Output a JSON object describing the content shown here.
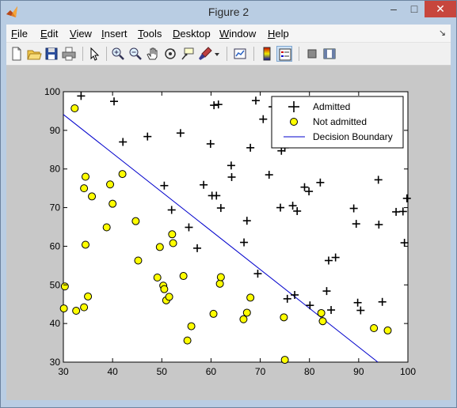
{
  "window": {
    "title": "Figure 2",
    "minimize_glyph": "–",
    "maximize_glyph": "□",
    "close_glyph": "✕"
  },
  "menubar": {
    "items": [
      {
        "u": "F",
        "rest": "ile"
      },
      {
        "u": "E",
        "rest": "dit"
      },
      {
        "u": "V",
        "rest": "iew"
      },
      {
        "u": "I",
        "rest": "nsert"
      },
      {
        "u": "T",
        "rest": "ools"
      },
      {
        "u": "D",
        "rest": "esktop"
      },
      {
        "u": "W",
        "rest": "indow"
      },
      {
        "u": "H",
        "rest": "elp"
      }
    ],
    "dock_glyph": "↘"
  },
  "toolbar": {
    "icons": [
      "new-figure-icon",
      "open-file-icon",
      "save-icon",
      "print-icon",
      "edit-plot-arrow-icon",
      "zoom-in-icon",
      "zoom-out-icon",
      "pan-hand-icon",
      "rotate-3d-icon",
      "data-cursor-icon",
      "brush-icon",
      "brush-dropdown-icon",
      "link-plot-icon",
      "insert-colorbar-icon",
      "insert-legend-icon",
      "hide-plot-tools-icon",
      "show-plot-tools-icon"
    ]
  },
  "chart_data": {
    "type": "scatter",
    "xlim": [
      30,
      100
    ],
    "ylim": [
      30,
      100
    ],
    "xticks": [
      30,
      40,
      50,
      60,
      70,
      80,
      90,
      100
    ],
    "yticks": [
      30,
      40,
      50,
      60,
      70,
      80,
      90,
      100
    ],
    "grid": false,
    "legend_position": "top-right",
    "series": [
      {
        "name": "Admitted",
        "marker": "plus",
        "color": "#000000",
        "points": [
          [
            33.6,
            98.9
          ],
          [
            40.3,
            97.5
          ],
          [
            42.1,
            87.0
          ],
          [
            47.1,
            88.4
          ],
          [
            53.8,
            89.3
          ],
          [
            50.5,
            75.7
          ],
          [
            52.0,
            69.4
          ],
          [
            55.5,
            64.9
          ],
          [
            57.2,
            59.5
          ],
          [
            58.5,
            75.9
          ],
          [
            59.9,
            86.5
          ],
          [
            60.2,
            73.1
          ],
          [
            60.6,
            96.5
          ],
          [
            61.1,
            73.1
          ],
          [
            61.5,
            96.7
          ],
          [
            62.0,
            69.9
          ],
          [
            64.1,
            80.9
          ],
          [
            64.2,
            77.9
          ],
          [
            66.7,
            61.0
          ],
          [
            67.3,
            66.6
          ],
          [
            68.0,
            85.5
          ],
          [
            69.1,
            97.7
          ],
          [
            69.5,
            52.9
          ],
          [
            70.6,
            92.9
          ],
          [
            71.8,
            78.5
          ],
          [
            72.5,
            96.1
          ],
          [
            74.1,
            70.0
          ],
          [
            74.3,
            84.7
          ],
          [
            75.0,
            85.5
          ],
          [
            75.5,
            46.4
          ],
          [
            76.6,
            70.5
          ],
          [
            77.0,
            47.4
          ],
          [
            77.5,
            69.1
          ],
          [
            79.0,
            75.3
          ],
          [
            79.9,
            74.2
          ],
          [
            80.1,
            44.7
          ],
          [
            82.2,
            76.5
          ],
          [
            82.7,
            40.7
          ],
          [
            83.5,
            48.4
          ],
          [
            83.9,
            56.3
          ],
          [
            84.4,
            43.5
          ],
          [
            85.3,
            57.1
          ],
          [
            89.0,
            69.8
          ],
          [
            89.5,
            65.8
          ],
          [
            89.8,
            45.4
          ],
          [
            90.4,
            43.4
          ],
          [
            94.0,
            77.2
          ],
          [
            94.1,
            65.6
          ],
          [
            94.8,
            45.6
          ],
          [
            97.6,
            68.9
          ],
          [
            99.0,
            69.0
          ],
          [
            99.3,
            60.9
          ],
          [
            99.8,
            72.4
          ]
        ]
      },
      {
        "name": "Not admitted",
        "marker": "circle",
        "color": "#ffff00",
        "points": [
          [
            30.1,
            43.9
          ],
          [
            30.3,
            49.6
          ],
          [
            32.3,
            95.7
          ],
          [
            32.6,
            43.3
          ],
          [
            34.2,
            44.2
          ],
          [
            34.2,
            75.0
          ],
          [
            34.5,
            60.4
          ],
          [
            34.5,
            78.0
          ],
          [
            35.0,
            47.0
          ],
          [
            35.8,
            72.9
          ],
          [
            38.8,
            64.9
          ],
          [
            39.5,
            76.0
          ],
          [
            40.0,
            71.0
          ],
          [
            42.0,
            78.7
          ],
          [
            44.7,
            66.5
          ],
          [
            45.2,
            56.3
          ],
          [
            49.1,
            51.9
          ],
          [
            49.6,
            59.8
          ],
          [
            50.3,
            49.8
          ],
          [
            50.5,
            48.9
          ],
          [
            50.9,
            46.0
          ],
          [
            51.5,
            46.9
          ],
          [
            52.1,
            63.1
          ],
          [
            52.3,
            60.8
          ],
          [
            54.4,
            52.3
          ],
          [
            55.2,
            35.6
          ],
          [
            56.0,
            39.3
          ],
          [
            60.5,
            42.5
          ],
          [
            61.8,
            50.3
          ],
          [
            62.0,
            52.0
          ],
          [
            66.6,
            41.1
          ],
          [
            67.3,
            42.8
          ],
          [
            68.0,
            46.7
          ],
          [
            74.8,
            41.6
          ],
          [
            75.0,
            30.6
          ],
          [
            82.4,
            42.7
          ],
          [
            82.7,
            40.6
          ],
          [
            93.1,
            38.8
          ],
          [
            95.9,
            38.2
          ]
        ]
      },
      {
        "name": "Decision Boundary",
        "marker": "line",
        "color": "#0000cc",
        "points": [
          [
            30.0,
            94.1
          ],
          [
            93.9,
            30.0
          ]
        ]
      }
    ]
  }
}
